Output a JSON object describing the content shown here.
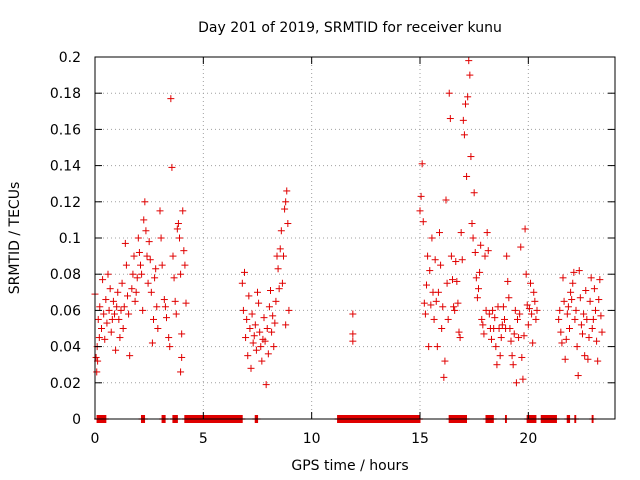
{
  "chart_data": {
    "type": "scatter",
    "title": "Day 201 of 2019, SRMTID for receiver kunu",
    "xlabel": "GPS time / hours",
    "ylabel": "SRMTID / TECUs",
    "xlim": [
      0,
      24
    ],
    "ylim": [
      0,
      0.2
    ],
    "xticks": [
      0,
      5,
      10,
      15,
      20
    ],
    "yticks": [
      0,
      0.02,
      0.04,
      0.06,
      0.08,
      0.1,
      0.12,
      0.14,
      0.16,
      0.18,
      0.2
    ],
    "ytick_labels": [
      "0",
      "0.02",
      "0.04",
      "0.06",
      "0.08",
      "0.1",
      "0.12",
      "0.14",
      "0.16",
      "0.18",
      "0.2"
    ],
    "grid": true,
    "marker": "+",
    "series_color": "#e00000",
    "points": [
      [
        0.0,
        0.069
      ],
      [
        0.05,
        0.034
      ],
      [
        0.08,
        0.026
      ],
      [
        0.1,
        0.04
      ],
      [
        0.12,
        0.032
      ],
      [
        0.15,
        0.055
      ],
      [
        0.2,
        0.045
      ],
      [
        0.22,
        0.062
      ],
      [
        0.3,
        0.05
      ],
      [
        0.35,
        0.077
      ],
      [
        0.4,
        0.058
      ],
      [
        0.45,
        0.044
      ],
      [
        0.5,
        0.066
      ],
      [
        0.55,
        0.053
      ],
      [
        0.6,
        0.08
      ],
      [
        0.65,
        0.06
      ],
      [
        0.7,
        0.072
      ],
      [
        0.75,
        0.048
      ],
      [
        0.8,
        0.055
      ],
      [
        0.85,
        0.065
      ],
      [
        0.9,
        0.058
      ],
      [
        0.95,
        0.038
      ],
      [
        1.0,
        0.062
      ],
      [
        1.05,
        0.07
      ],
      [
        1.1,
        0.055
      ],
      [
        1.15,
        0.045
      ],
      [
        1.2,
        0.06
      ],
      [
        1.25,
        0.075
      ],
      [
        1.3,
        0.05
      ],
      [
        1.35,
        0.062
      ],
      [
        1.4,
        0.097
      ],
      [
        1.45,
        0.085
      ],
      [
        1.5,
        0.068
      ],
      [
        1.55,
        0.058
      ],
      [
        1.6,
        0.035
      ],
      [
        1.7,
        0.072
      ],
      [
        1.75,
        0.08
      ],
      [
        1.8,
        0.09
      ],
      [
        1.85,
        0.065
      ],
      [
        1.9,
        0.07
      ],
      [
        1.95,
        0.078
      ],
      [
        2.0,
        0.1
      ],
      [
        2.05,
        0.092
      ],
      [
        2.1,
        0.085
      ],
      [
        2.15,
        0.08
      ],
      [
        2.2,
        0.06
      ],
      [
        2.25,
        0.11
      ],
      [
        2.3,
        0.12
      ],
      [
        2.35,
        0.104
      ],
      [
        2.4,
        0.09
      ],
      [
        2.45,
        0.075
      ],
      [
        2.5,
        0.098
      ],
      [
        2.55,
        0.088
      ],
      [
        2.6,
        0.07
      ],
      [
        2.65,
        0.042
      ],
      [
        2.7,
        0.055
      ],
      [
        2.75,
        0.078
      ],
      [
        2.8,
        0.083
      ],
      [
        2.85,
        0.062
      ],
      [
        2.9,
        0.05
      ],
      [
        3.0,
        0.115
      ],
      [
        3.05,
        0.1
      ],
      [
        3.1,
        0.085
      ],
      [
        3.2,
        0.066
      ],
      [
        3.25,
        0.062
      ],
      [
        3.3,
        0.056
      ],
      [
        3.4,
        0.045
      ],
      [
        3.45,
        0.04
      ],
      [
        3.5,
        0.177
      ],
      [
        3.55,
        0.139
      ],
      [
        3.6,
        0.09
      ],
      [
        3.65,
        0.078
      ],
      [
        3.7,
        0.065
      ],
      [
        3.75,
        0.058
      ],
      [
        3.8,
        0.105
      ],
      [
        3.85,
        0.108
      ],
      [
        3.9,
        0.1
      ],
      [
        3.95,
        0.08
      ],
      [
        4.0,
        0.047
      ],
      [
        4.0,
        0.034
      ],
      [
        3.95,
        0.026
      ],
      [
        4.05,
        0.115
      ],
      [
        4.1,
        0.093
      ],
      [
        4.15,
        0.085
      ],
      [
        4.2,
        0.064
      ],
      [
        6.8,
        0.075
      ],
      [
        6.85,
        0.06
      ],
      [
        6.9,
        0.081
      ],
      [
        6.95,
        0.045
      ],
      [
        7.0,
        0.055
      ],
      [
        7.05,
        0.035
      ],
      [
        7.1,
        0.068
      ],
      [
        7.15,
        0.05
      ],
      [
        7.2,
        0.028
      ],
      [
        7.25,
        0.058
      ],
      [
        7.3,
        0.042
      ],
      [
        7.35,
        0.046
      ],
      [
        7.4,
        0.052
      ],
      [
        7.45,
        0.038
      ],
      [
        7.5,
        0.07
      ],
      [
        7.55,
        0.064
      ],
      [
        7.6,
        0.048
      ],
      [
        7.65,
        0.04
      ],
      [
        7.7,
        0.032
      ],
      [
        7.75,
        0.044
      ],
      [
        7.8,
        0.056
      ],
      [
        7.85,
        0.043
      ],
      [
        7.9,
        0.019
      ],
      [
        7.95,
        0.05
      ],
      [
        8.0,
        0.036
      ],
      [
        8.05,
        0.062
      ],
      [
        8.1,
        0.071
      ],
      [
        8.15,
        0.048
      ],
      [
        8.2,
        0.057
      ],
      [
        8.25,
        0.04
      ],
      [
        8.3,
        0.053
      ],
      [
        8.35,
        0.065
      ],
      [
        8.4,
        0.09
      ],
      [
        8.45,
        0.083
      ],
      [
        8.5,
        0.072
      ],
      [
        8.55,
        0.094
      ],
      [
        8.6,
        0.104
      ],
      [
        8.65,
        0.075
      ],
      [
        8.7,
        0.09
      ],
      [
        8.75,
        0.116
      ],
      [
        8.8,
        0.12
      ],
      [
        8.85,
        0.126
      ],
      [
        8.9,
        0.108
      ],
      [
        8.95,
        0.06
      ],
      [
        8.8,
        0.052
      ],
      [
        11.9,
        0.058
      ],
      [
        11.9,
        0.047
      ],
      [
        11.9,
        0.043
      ],
      [
        15.0,
        0.115
      ],
      [
        15.05,
        0.123
      ],
      [
        15.1,
        0.141
      ],
      [
        15.15,
        0.109
      ],
      [
        15.2,
        0.064
      ],
      [
        15.25,
        0.058
      ],
      [
        15.3,
        0.074
      ],
      [
        15.35,
        0.09
      ],
      [
        15.4,
        0.04
      ],
      [
        15.45,
        0.082
      ],
      [
        15.5,
        0.063
      ],
      [
        15.55,
        0.1
      ],
      [
        15.6,
        0.07
      ],
      [
        15.65,
        0.055
      ],
      [
        15.7,
        0.088
      ],
      [
        15.75,
        0.065
      ],
      [
        15.8,
        0.04
      ],
      [
        15.85,
        0.07
      ],
      [
        15.9,
        0.103
      ],
      [
        15.95,
        0.085
      ],
      [
        16.0,
        0.05
      ],
      [
        16.05,
        0.062
      ],
      [
        16.1,
        0.023
      ],
      [
        16.15,
        0.032
      ],
      [
        16.2,
        0.121
      ],
      [
        16.25,
        0.075
      ],
      [
        16.3,
        0.055
      ],
      [
        16.35,
        0.18
      ],
      [
        16.4,
        0.166
      ],
      [
        16.45,
        0.09
      ],
      [
        16.5,
        0.077
      ],
      [
        16.55,
        0.062
      ],
      [
        16.6,
        0.06
      ],
      [
        16.65,
        0.087
      ],
      [
        16.7,
        0.076
      ],
      [
        16.75,
        0.064
      ],
      [
        16.8,
        0.048
      ],
      [
        16.85,
        0.045
      ],
      [
        16.9,
        0.103
      ],
      [
        16.95,
        0.088
      ],
      [
        17.0,
        0.165
      ],
      [
        17.05,
        0.157
      ],
      [
        17.1,
        0.174
      ],
      [
        17.15,
        0.134
      ],
      [
        17.2,
        0.178
      ],
      [
        17.25,
        0.198
      ],
      [
        17.3,
        0.19
      ],
      [
        17.35,
        0.145
      ],
      [
        17.4,
        0.108
      ],
      [
        17.45,
        0.1
      ],
      [
        17.5,
        0.125
      ],
      [
        17.55,
        0.092
      ],
      [
        17.6,
        0.078
      ],
      [
        17.65,
        0.067
      ],
      [
        17.7,
        0.072
      ],
      [
        17.75,
        0.081
      ],
      [
        17.8,
        0.096
      ],
      [
        17.85,
        0.055
      ],
      [
        17.9,
        0.052
      ],
      [
        17.95,
        0.047
      ],
      [
        18.0,
        0.09
      ],
      [
        18.05,
        0.06
      ],
      [
        18.1,
        0.103
      ],
      [
        18.15,
        0.093
      ],
      [
        18.2,
        0.058
      ],
      [
        18.25,
        0.05
      ],
      [
        18.3,
        0.044
      ],
      [
        18.35,
        0.06
      ],
      [
        18.4,
        0.05
      ],
      [
        18.45,
        0.056
      ],
      [
        18.5,
        0.04
      ],
      [
        18.55,
        0.03
      ],
      [
        18.6,
        0.062
      ],
      [
        18.65,
        0.05
      ],
      [
        18.7,
        0.035
      ],
      [
        18.75,
        0.045
      ],
      [
        18.8,
        0.052
      ],
      [
        18.85,
        0.062
      ],
      [
        18.9,
        0.055
      ],
      [
        18.95,
        0.05
      ],
      [
        19.0,
        0.09
      ],
      [
        19.05,
        0.076
      ],
      [
        19.1,
        0.067
      ],
      [
        19.15,
        0.05
      ],
      [
        19.2,
        0.043
      ],
      [
        19.25,
        0.035
      ],
      [
        19.3,
        0.03
      ],
      [
        19.35,
        0.047
      ],
      [
        19.4,
        0.06
      ],
      [
        19.45,
        0.02
      ],
      [
        19.5,
        0.055
      ],
      [
        19.55,
        0.045
      ],
      [
        19.6,
        0.058
      ],
      [
        19.65,
        0.095
      ],
      [
        19.7,
        0.034
      ],
      [
        19.75,
        0.022
      ],
      [
        19.8,
        0.046
      ],
      [
        19.85,
        0.105
      ],
      [
        19.9,
        0.08
      ],
      [
        19.95,
        0.063
      ],
      [
        20.0,
        0.052
      ],
      [
        20.05,
        0.061
      ],
      [
        20.1,
        0.075
      ],
      [
        20.15,
        0.058
      ],
      [
        20.2,
        0.042
      ],
      [
        20.25,
        0.07
      ],
      [
        20.3,
        0.065
      ],
      [
        20.35,
        0.055
      ],
      [
        20.4,
        0.06
      ],
      [
        21.4,
        0.055
      ],
      [
        21.45,
        0.06
      ],
      [
        21.5,
        0.048
      ],
      [
        21.55,
        0.042
      ],
      [
        21.6,
        0.078
      ],
      [
        21.65,
        0.065
      ],
      [
        21.7,
        0.033
      ],
      [
        21.75,
        0.044
      ],
      [
        21.8,
        0.058
      ],
      [
        21.85,
        0.062
      ],
      [
        21.9,
        0.05
      ],
      [
        21.95,
        0.07
      ],
      [
        22.0,
        0.066
      ],
      [
        22.05,
        0.075
      ],
      [
        22.1,
        0.081
      ],
      [
        22.15,
        0.055
      ],
      [
        22.2,
        0.06
      ],
      [
        22.25,
        0.04
      ],
      [
        22.3,
        0.024
      ],
      [
        22.35,
        0.082
      ],
      [
        22.4,
        0.067
      ],
      [
        22.45,
        0.052
      ],
      [
        22.5,
        0.047
      ],
      [
        22.55,
        0.058
      ],
      [
        22.6,
        0.035
      ],
      [
        22.65,
        0.071
      ],
      [
        22.7,
        0.055
      ],
      [
        22.75,
        0.033
      ],
      [
        22.8,
        0.045
      ],
      [
        22.85,
        0.065
      ],
      [
        22.9,
        0.078
      ],
      [
        22.95,
        0.05
      ],
      [
        23.0,
        0.055
      ],
      [
        23.05,
        0.072
      ],
      [
        23.1,
        0.06
      ],
      [
        23.15,
        0.043
      ],
      [
        23.2,
        0.032
      ],
      [
        23.25,
        0.066
      ],
      [
        23.3,
        0.077
      ],
      [
        23.35,
        0.057
      ],
      [
        23.4,
        0.048
      ]
    ],
    "zero_runs": [
      [
        0.1,
        0.5
      ],
      [
        2.15,
        2.3
      ],
      [
        3.1,
        3.25
      ],
      [
        3.6,
        3.8
      ],
      [
        4.15,
        6.8
      ],
      [
        7.4,
        7.5
      ],
      [
        11.2,
        15.0
      ],
      [
        16.35,
        17.15
      ],
      [
        18.05,
        18.4
      ],
      [
        18.95,
        19.0
      ],
      [
        19.95,
        20.35
      ],
      [
        20.6,
        21.3
      ],
      [
        21.8,
        21.9
      ],
      [
        22.15,
        22.2
      ],
      [
        22.95,
        23.0
      ]
    ]
  }
}
